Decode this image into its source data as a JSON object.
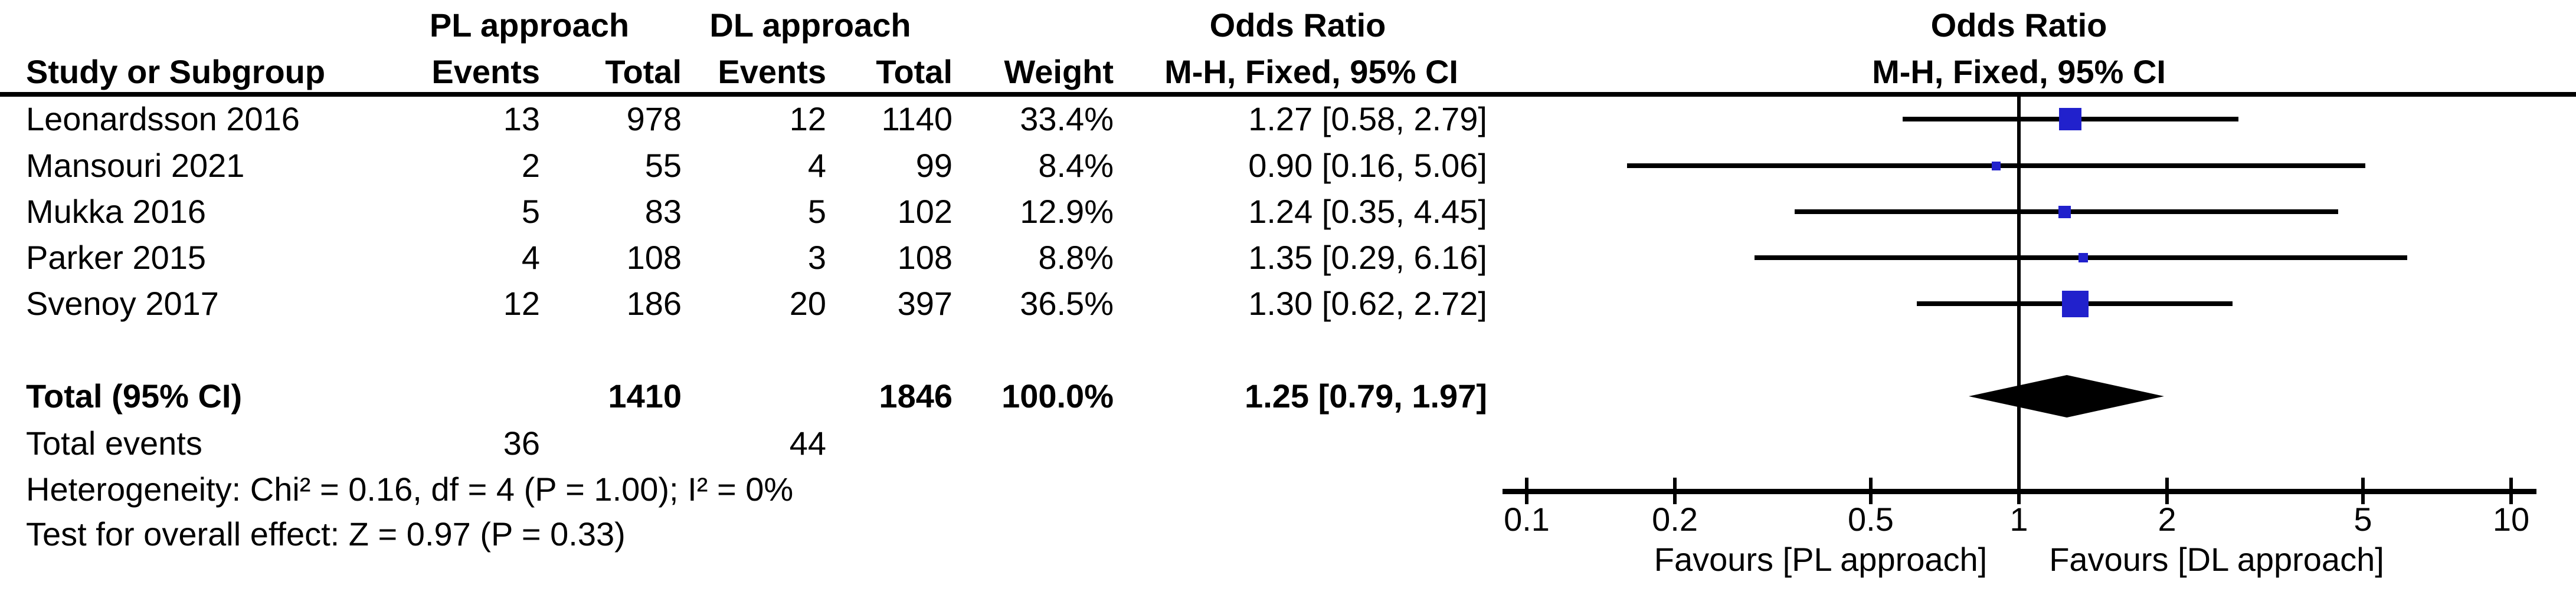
{
  "table": {
    "header": {
      "group1": "PL approach",
      "group2": "DL approach",
      "or_title": "Odds Ratio",
      "study": "Study or Subgroup",
      "events": "Events",
      "total": "Total",
      "weight": "Weight",
      "or_method": "M-H, Fixed, 95% CI"
    },
    "studies": [
      {
        "name": "Leonardsson 2016",
        "events1": "13",
        "total1": "978",
        "events2": "12",
        "total2": "1140",
        "weight": "33.4%",
        "or_ci": "1.27 [0.58, 2.79]"
      },
      {
        "name": "Mansouri 2021",
        "events1": "2",
        "total1": "55",
        "events2": "4",
        "total2": "99",
        "weight": "8.4%",
        "or_ci": "0.90 [0.16, 5.06]"
      },
      {
        "name": "Mukka 2016",
        "events1": "5",
        "total1": "83",
        "events2": "5",
        "total2": "102",
        "weight": "12.9%",
        "or_ci": "1.24 [0.35, 4.45]"
      },
      {
        "name": "Parker 2015",
        "events1": "4",
        "total1": "108",
        "events2": "3",
        "total2": "108",
        "weight": "8.8%",
        "or_ci": "1.35 [0.29, 6.16]"
      },
      {
        "name": "Svenoy 2017",
        "events1": "12",
        "total1": "186",
        "events2": "20",
        "total2": "397",
        "weight": "36.5%",
        "or_ci": "1.30 [0.62, 2.72]"
      }
    ],
    "total_row": {
      "label": "Total (95% CI)",
      "total1": "1410",
      "total2": "1846",
      "weight": "100.0%",
      "or_ci": "1.25 [0.79, 1.97]"
    },
    "total_events_row": {
      "label": "Total events",
      "events1": "36",
      "events2": "44"
    },
    "heterogeneity": "Heterogeneity: Chi² = 0.16, df = 4 (P = 1.00); I² = 0%",
    "overall_effect": "Test for overall effect: Z = 0.97 (P = 0.33)"
  },
  "plot": {
    "x_axis": {
      "tick_labels": [
        "0.1",
        "0.2",
        "0.5",
        "1",
        "2",
        "5",
        "10"
      ]
    },
    "favours_left": "Favours [PL approach]",
    "favours_right": "Favours [DL approach]",
    "marker_color": "#2121CC",
    "line_color": "#000000"
  },
  "chart_data": {
    "type": "scatter",
    "subtype": "forest_plot_meta_analysis",
    "title": "Odds Ratio",
    "method": "M-H, Fixed, 95% CI",
    "x_scale": "log10",
    "x_range": [
      0.1,
      10
    ],
    "x_ticks": [
      0.1,
      0.2,
      0.5,
      1,
      2,
      5,
      10
    ],
    "null_line": 1,
    "studies": [
      {
        "label": "Leonardsson 2016",
        "or": 1.27,
        "ci_low": 0.58,
        "ci_high": 2.79,
        "weight_pct": 33.4,
        "marker_px": 38
      },
      {
        "label": "Mansouri 2021",
        "or": 0.9,
        "ci_low": 0.16,
        "ci_high": 5.06,
        "weight_pct": 8.4,
        "marker_px": 15
      },
      {
        "label": "Mukka 2016",
        "or": 1.24,
        "ci_low": 0.35,
        "ci_high": 4.45,
        "weight_pct": 12.9,
        "marker_px": 21
      },
      {
        "label": "Parker 2015",
        "or": 1.35,
        "ci_low": 0.29,
        "ci_high": 6.16,
        "weight_pct": 8.8,
        "marker_px": 16
      },
      {
        "label": "Svenoy 2017",
        "or": 1.3,
        "ci_low": 0.62,
        "ci_high": 2.72,
        "weight_pct": 36.5,
        "marker_px": 45
      }
    ],
    "total": {
      "label": "Total (95% CI)",
      "or": 1.25,
      "ci_low": 0.79,
      "ci_high": 1.97,
      "weight_pct": 100.0
    },
    "heterogeneity": {
      "chi2": 0.16,
      "df": 4,
      "p": 1.0,
      "i2_pct": 0
    },
    "overall_effect": {
      "z": 0.97,
      "p": 0.33
    },
    "favours_left": "Favours [PL approach]",
    "favours_right": "Favours [DL approach]",
    "legend_position": "none",
    "grid": false
  }
}
